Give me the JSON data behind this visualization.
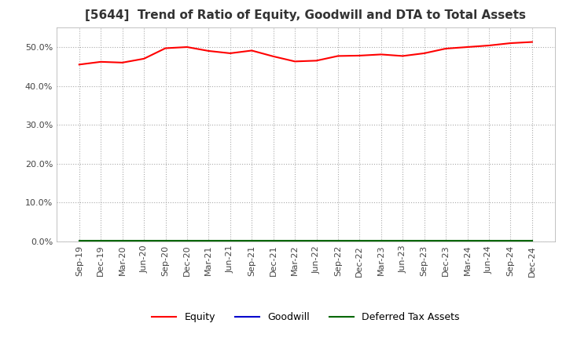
{
  "title": "[5644]  Trend of Ratio of Equity, Goodwill and DTA to Total Assets",
  "title_fontsize": 11,
  "xlabel_fontsize": 8,
  "ylim": [
    0.0,
    0.55
  ],
  "yticks": [
    0.0,
    0.1,
    0.2,
    0.3,
    0.4,
    0.5
  ],
  "x_labels": [
    "Sep-19",
    "Dec-19",
    "Mar-20",
    "Jun-20",
    "Sep-20",
    "Dec-20",
    "Mar-21",
    "Jun-21",
    "Sep-21",
    "Dec-21",
    "Mar-22",
    "Jun-22",
    "Sep-22",
    "Dec-22",
    "Mar-23",
    "Jun-23",
    "Sep-23",
    "Dec-23",
    "Mar-24",
    "Jun-24",
    "Sep-24",
    "Dec-24"
  ],
  "equity": [
    0.455,
    0.462,
    0.46,
    0.47,
    0.497,
    0.5,
    0.49,
    0.484,
    0.491,
    0.476,
    0.463,
    0.465,
    0.477,
    0.478,
    0.481,
    0.477,
    0.484,
    0.496,
    0.5,
    0.504,
    0.51,
    0.513
  ],
  "goodwill": [
    0.0,
    0.0,
    0.0,
    0.0,
    0.0,
    0.0,
    0.0,
    0.0,
    0.0,
    0.0,
    0.0,
    0.0,
    0.0,
    0.0,
    0.0,
    0.0,
    0.0,
    0.0,
    0.0,
    0.0,
    0.0,
    0.0
  ],
  "dta": [
    0.002,
    0.002,
    0.002,
    0.002,
    0.002,
    0.002,
    0.002,
    0.002,
    0.002,
    0.002,
    0.002,
    0.002,
    0.002,
    0.002,
    0.002,
    0.002,
    0.002,
    0.002,
    0.002,
    0.002,
    0.002,
    0.002
  ],
  "equity_color": "#ff0000",
  "goodwill_color": "#0000cc",
  "dta_color": "#006600",
  "bg_color": "#ffffff",
  "plot_bg_color": "#ffffff",
  "grid_color": "#aaaaaa",
  "legend_labels": [
    "Equity",
    "Goodwill",
    "Deferred Tax Assets"
  ]
}
